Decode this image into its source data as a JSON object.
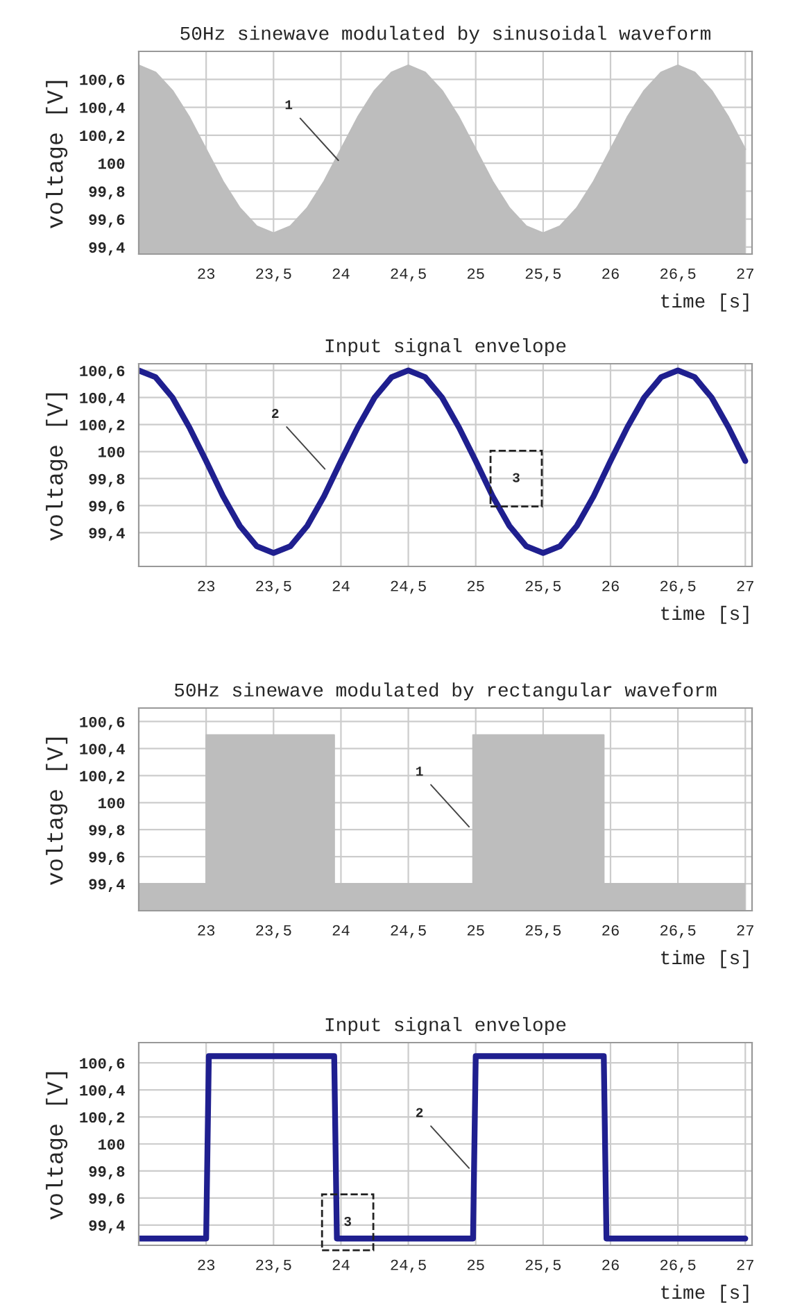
{
  "chart_data": [
    {
      "type": "area",
      "title": "50Hz sinewave modulated by sinusoidal waveform",
      "xlabel": "time [s]",
      "ylabel": "voltage [V]",
      "xlim": [
        22.5,
        27.05
      ],
      "ylim": [
        99.35,
        100.8
      ],
      "grid": true,
      "xticks": [
        23,
        {
          "value": 23.5,
          "label": "23,5"
        },
        24,
        {
          "value": 24.5,
          "label": "24,5"
        },
        25,
        {
          "value": 25.5,
          "label": "25,5"
        },
        26,
        {
          "value": 26.5,
          "label": "26,5"
        },
        27
      ],
      "yticks": [
        {
          "value": 99.4,
          "label": "99,4"
        },
        {
          "value": 99.6,
          "label": "99,6"
        },
        {
          "value": 99.8,
          "label": "99,8"
        },
        100,
        {
          "value": 100.2,
          "label": "100,2"
        },
        {
          "value": 100.4,
          "label": "100,4"
        },
        {
          "value": 100.6,
          "label": "100,6"
        }
      ],
      "annotations": [
        {
          "text": "1",
          "x": 24.0,
          "y": 100.0
        }
      ],
      "series": [
        {
          "color": "#bdbdbd",
          "x": [
            22.5,
            22.625,
            22.75,
            22.875,
            23,
            23.125,
            23.25,
            23.375,
            23.5,
            23.625,
            23.75,
            23.875,
            24,
            24.125,
            24.25,
            24.375,
            24.5,
            24.625,
            24.75,
            24.875,
            25,
            25.125,
            25.25,
            25.375,
            25.5,
            25.625,
            25.75,
            25.875,
            26,
            26.125,
            26.25,
            26.375,
            26.5,
            26.625,
            26.75,
            26.875,
            27
          ],
          "values": [
            100.7,
            100.65,
            100.52,
            100.33,
            100.1,
            99.87,
            99.68,
            99.55,
            99.5,
            99.55,
            99.68,
            99.87,
            100.1,
            100.33,
            100.52,
            100.65,
            100.7,
            100.65,
            100.52,
            100.33,
            100.1,
            99.87,
            99.68,
            99.55,
            99.5,
            99.55,
            99.68,
            99.87,
            100.1,
            100.33,
            100.52,
            100.65,
            100.7,
            100.65,
            100.52,
            100.33,
            100.1
          ]
        }
      ]
    },
    {
      "type": "line",
      "title": "Input signal envelope",
      "xlabel": "time [s]",
      "ylabel": "voltage [V]",
      "xlim": [
        22.5,
        27.05
      ],
      "ylim": [
        99.15,
        100.65
      ],
      "grid": true,
      "xticks": [
        23,
        {
          "value": 23.5,
          "label": "23,5"
        },
        24,
        {
          "value": 24.5,
          "label": "24,5"
        },
        25,
        {
          "value": 25.5,
          "label": "25,5"
        },
        26,
        {
          "value": 26.5,
          "label": "26,5"
        },
        27
      ],
      "yticks": [
        {
          "value": 99.4,
          "label": "99,4"
        },
        {
          "value": 99.6,
          "label": "99,6"
        },
        {
          "value": 99.8,
          "label": "99,8"
        },
        100,
        {
          "value": 100.2,
          "label": "100,2"
        },
        {
          "value": 100.4,
          "label": "100,4"
        },
        {
          "value": 100.6,
          "label": "100,6"
        }
      ],
      "annotations": [
        {
          "text": "2",
          "x": 23.9,
          "y": 99.85
        },
        {
          "text": "3",
          "x": 25.3,
          "y": 99.8
        }
      ],
      "series": [
        {
          "color": "#1f1f8f",
          "x": [
            22.5,
            22.625,
            22.75,
            22.875,
            23,
            23.125,
            23.25,
            23.375,
            23.5,
            23.625,
            23.75,
            23.875,
            24,
            24.125,
            24.25,
            24.375,
            24.5,
            24.625,
            24.75,
            24.875,
            25,
            25.125,
            25.25,
            25.375,
            25.5,
            25.625,
            25.75,
            25.875,
            26,
            26.125,
            26.25,
            26.375,
            26.5,
            26.625,
            26.75,
            26.875,
            27
          ],
          "values": [
            100.6,
            100.55,
            100.4,
            100.18,
            99.93,
            99.67,
            99.45,
            99.3,
            99.25,
            99.3,
            99.45,
            99.67,
            99.93,
            100.18,
            100.4,
            100.55,
            100.6,
            100.55,
            100.4,
            100.18,
            99.93,
            99.67,
            99.45,
            99.3,
            99.25,
            99.3,
            99.45,
            99.67,
            99.93,
            100.18,
            100.4,
            100.55,
            100.6,
            100.55,
            100.4,
            100.18,
            99.93
          ]
        }
      ]
    },
    {
      "type": "area",
      "title": "50Hz sinewave modulated by rectangular waveform",
      "xlabel": "time [s]",
      "ylabel": "voltage [V]",
      "xlim": [
        22.5,
        27.05
      ],
      "ylim": [
        99.2,
        100.7
      ],
      "grid": true,
      "xticks": [
        23,
        {
          "value": 23.5,
          "label": "23,5"
        },
        24,
        {
          "value": 24.5,
          "label": "24,5"
        },
        25,
        {
          "value": 25.5,
          "label": "25,5"
        },
        26,
        {
          "value": 26.5,
          "label": "26,5"
        },
        27
      ],
      "yticks": [
        {
          "value": 99.4,
          "label": "99,4"
        },
        {
          "value": 99.6,
          "label": "99,6"
        },
        {
          "value": 99.8,
          "label": "99,8"
        },
        100,
        {
          "value": 100.2,
          "label": "100,2"
        },
        {
          "value": 100.4,
          "label": "100,4"
        },
        {
          "value": 100.6,
          "label": "100,6"
        }
      ],
      "annotations": [
        {
          "text": "1",
          "x": 24.97,
          "y": 99.8
        }
      ],
      "series": [
        {
          "color": "#bdbdbd",
          "x": [
            22.5,
            23.0,
            23.0,
            23.95,
            23.95,
            24.98,
            24.98,
            25.95,
            25.95,
            27.0
          ],
          "values": [
            99.4,
            99.4,
            100.5,
            100.5,
            99.4,
            99.4,
            100.5,
            100.5,
            99.4,
            99.4
          ]
        }
      ]
    },
    {
      "type": "line",
      "title": "Input signal envelope",
      "xlabel": "time [s]",
      "ylabel": "voltage [V]",
      "xlim": [
        22.5,
        27.05
      ],
      "ylim": [
        99.25,
        100.75
      ],
      "grid": true,
      "xticks": [
        23,
        {
          "value": 23.5,
          "label": "23,5"
        },
        24,
        {
          "value": 24.5,
          "label": "24,5"
        },
        25,
        {
          "value": 25.5,
          "label": "25,5"
        },
        26,
        {
          "value": 26.5,
          "label": "26,5"
        },
        27
      ],
      "yticks": [
        {
          "value": 99.4,
          "label": "99,4"
        },
        {
          "value": 99.6,
          "label": "99,6"
        },
        {
          "value": 99.8,
          "label": "99,8"
        },
        100,
        {
          "value": 100.2,
          "label": "100,2"
        },
        {
          "value": 100.4,
          "label": "100,4"
        },
        {
          "value": 100.6,
          "label": "100,6"
        }
      ],
      "annotations": [
        {
          "text": "2",
          "x": 24.97,
          "y": 99.8
        },
        {
          "text": "3",
          "x": 24.05,
          "y": 99.42
        }
      ],
      "series": [
        {
          "color": "#1f1f8f",
          "x": [
            22.5,
            23.0,
            23.02,
            23.95,
            23.97,
            24.98,
            25.0,
            25.95,
            25.97,
            27.0
          ],
          "values": [
            99.3,
            99.3,
            100.65,
            100.65,
            99.3,
            99.3,
            100.65,
            100.65,
            99.3,
            99.3
          ]
        }
      ]
    }
  ]
}
